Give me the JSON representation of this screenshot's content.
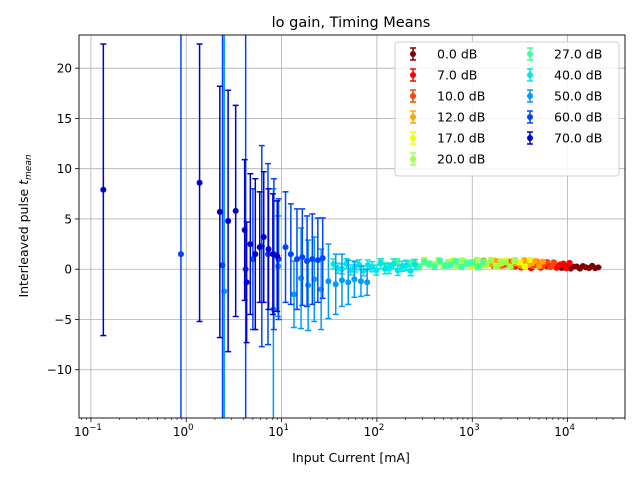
{
  "chart_data": {
    "type": "scatter",
    "title": "lo gain, Timing Means",
    "xlabel": "Input Current [mA]",
    "ylabel_main": "Interleaved pulse ",
    "ylabel_var": "t",
    "ylabel_sub": "mean",
    "xscale": "log",
    "xlim": [
      0.075,
      40000
    ],
    "ylim": [
      -14.8,
      23.3
    ],
    "xtick_base": "10",
    "xticks": [
      {
        "exp": "−1",
        "value": 0.1
      },
      {
        "exp": "0",
        "value": 1
      },
      {
        "exp": "1",
        "value": 10
      },
      {
        "exp": "2",
        "value": 100
      },
      {
        "exp": "3",
        "value": 1000
      },
      {
        "exp": "4",
        "value": 10000
      }
    ],
    "yticks": [
      {
        "label": "−10",
        "value": -10
      },
      {
        "label": "−5",
        "value": -5
      },
      {
        "label": "0",
        "value": 0
      },
      {
        "label": "5",
        "value": 5
      },
      {
        "label": "10",
        "value": 10
      },
      {
        "label": "15",
        "value": 15
      },
      {
        "label": "20",
        "value": 20
      }
    ],
    "grid": true,
    "legend_position": "top-right",
    "legend_columns": 2,
    "series": [
      {
        "name": "0.0 dB",
        "color": "#800000",
        "x_start": 8000,
        "x_end": 21000,
        "n": 14,
        "y_center": 0.2,
        "y_jitter": 0.15,
        "err": 0.05
      },
      {
        "name": "7.0 dB",
        "color": "#ff0000",
        "x_start": 2400,
        "x_end": 10500,
        "n": 20,
        "y_center": 0.4,
        "y_jitter": 0.3,
        "err": 0.1
      },
      {
        "name": "10.0 dB",
        "color": "#ff4400",
        "x_start": 1700,
        "x_end": 7200,
        "n": 18,
        "y_center": 0.5,
        "y_jitter": 0.3,
        "err": 0.12
      },
      {
        "name": "12.0 dB",
        "color": "#ffa500",
        "x_start": 1200,
        "x_end": 5500,
        "n": 18,
        "y_center": 0.6,
        "y_jitter": 0.3,
        "err": 0.15
      },
      {
        "name": "17.0 dB",
        "color": "#f0ff00",
        "x_start": 350,
        "x_end": 4000,
        "n": 22,
        "y_center": 0.6,
        "y_jitter": 0.35,
        "err": 0.2
      },
      {
        "name": "20.0 dB",
        "color": "#a0ff50",
        "x_start": 250,
        "x_end": 2800,
        "n": 22,
        "y_center": 0.6,
        "y_jitter": 0.35,
        "err": 0.2
      },
      {
        "name": "27.0 dB",
        "color": "#40ff9e",
        "x_start": 110,
        "x_end": 1300,
        "n": 20,
        "y_center": 0.5,
        "y_jitter": 0.3,
        "err": 0.25
      },
      {
        "name": "40.0 dB",
        "color": "#00e5e5",
        "x_start": 35,
        "x_end": 250,
        "n": 20,
        "y_center": 0.2,
        "y_jitter": 0.35,
        "err": 0.5
      },
      {
        "name": "50.0 dB",
        "color": "#0099ff",
        "points": [
          {
            "x": 2.5,
            "y": -2.2,
            "err": 40.0
          },
          {
            "x": 8.2,
            "y": -4.0,
            "err": 12.0
          },
          {
            "x": 9.2,
            "y": 0.3,
            "err": 5.0
          },
          {
            "x": 13.5,
            "y": -2.5,
            "err": 3.3
          },
          {
            "x": 16.0,
            "y": -0.9,
            "err": 5.0
          },
          {
            "x": 19.0,
            "y": -1.6,
            "err": 4.5
          },
          {
            "x": 22.0,
            "y": -1.0,
            "err": 4.2
          },
          {
            "x": 26.0,
            "y": -2.0,
            "err": 4.0
          },
          {
            "x": 31.0,
            "y": -1.2,
            "err": 3.7
          },
          {
            "x": 37.0,
            "y": -1.5,
            "err": 3.0
          },
          {
            "x": 43.0,
            "y": -1.1,
            "err": 2.6
          },
          {
            "x": 50.0,
            "y": -1.3,
            "err": 2.2
          },
          {
            "x": 58.0,
            "y": -1.0,
            "err": 1.8
          },
          {
            "x": 68.0,
            "y": -1.2,
            "err": 1.5
          },
          {
            "x": 79.0,
            "y": -1.3,
            "err": 1.3
          }
        ]
      },
      {
        "name": "60.0 dB",
        "color": "#0044ff",
        "points": [
          {
            "x": 0.88,
            "y": 1.5,
            "err": 40.0
          },
          {
            "x": 2.4,
            "y": 0.4,
            "err": 40.0
          },
          {
            "x": 4.2,
            "y": 0.0,
            "err": 40.0
          },
          {
            "x": 5.0,
            "y": 1.0,
            "err": 7.0
          },
          {
            "x": 6.2,
            "y": 2.3,
            "err": 10.0
          },
          {
            "x": 7.2,
            "y": 1.5,
            "err": 9.0
          },
          {
            "x": 8.3,
            "y": 1.5,
            "err": 7.5
          },
          {
            "x": 9.3,
            "y": 1.0,
            "err": 6.0
          },
          {
            "x": 11.0,
            "y": 2.2,
            "err": 5.5
          },
          {
            "x": 12.5,
            "y": 1.5,
            "err": 5.0
          },
          {
            "x": 14.5,
            "y": 1.0,
            "err": 5.0
          },
          {
            "x": 16.5,
            "y": 1.2,
            "err": 4.8
          },
          {
            "x": 18.5,
            "y": 0.8,
            "err": 4.5
          },
          {
            "x": 21.0,
            "y": 1.0,
            "err": 4.5
          },
          {
            "x": 24.0,
            "y": 0.9,
            "err": 4.2
          },
          {
            "x": 27.0,
            "y": 1.1,
            "err": 4.0
          }
        ]
      },
      {
        "name": "70.0 dB",
        "color": "#0000cd",
        "points": [
          {
            "x": 0.135,
            "y": 7.9,
            "err": 14.5
          },
          {
            "x": 1.38,
            "y": 8.6,
            "err": 13.8
          },
          {
            "x": 2.25,
            "y": 5.7,
            "err": 12.5
          },
          {
            "x": 2.75,
            "y": 4.8,
            "err": 13.0
          },
          {
            "x": 3.3,
            "y": 5.8,
            "err": 10.5
          },
          {
            "x": 4.1,
            "y": 3.9,
            "err": 7.0
          },
          {
            "x": 4.3,
            "y": -1.3,
            "err": 6.0
          },
          {
            "x": 4.7,
            "y": 2.5,
            "err": 7.0
          },
          {
            "x": 5.3,
            "y": 1.5,
            "err": 7.5
          },
          {
            "x": 5.9,
            "y": 2.2,
            "err": 5.5
          },
          {
            "x": 6.5,
            "y": 3.2,
            "err": 6.5
          },
          {
            "x": 7.3,
            "y": 2.0,
            "err": 6.0
          },
          {
            "x": 8.1,
            "y": 1.5,
            "err": 6.0
          },
          {
            "x": 9.0,
            "y": 1.3,
            "err": 5.5
          }
        ]
      }
    ]
  }
}
